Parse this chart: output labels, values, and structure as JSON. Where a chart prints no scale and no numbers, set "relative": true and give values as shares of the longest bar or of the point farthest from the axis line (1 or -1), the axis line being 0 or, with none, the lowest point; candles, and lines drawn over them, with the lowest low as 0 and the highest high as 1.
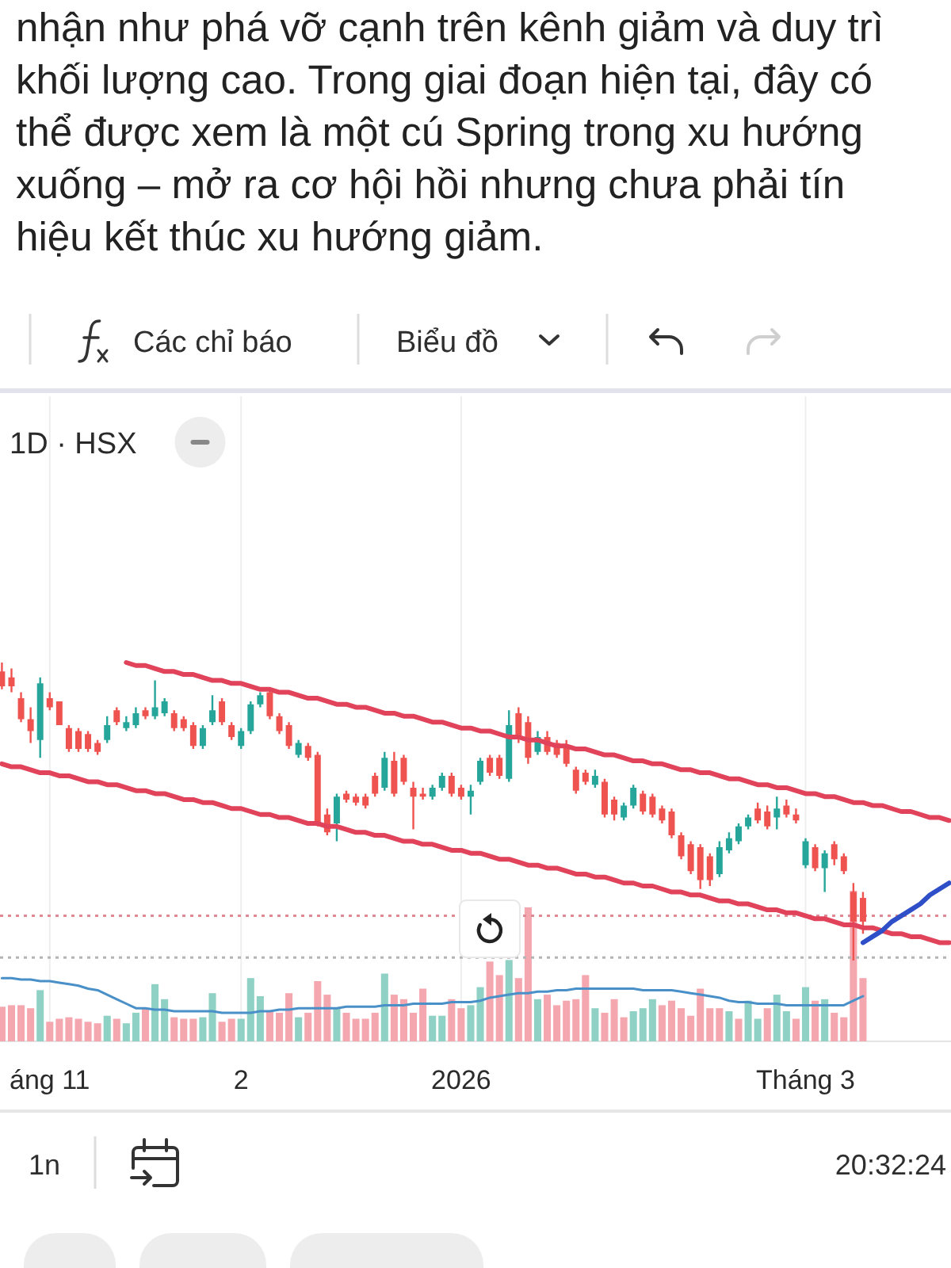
{
  "chart_data": [
    {
      "type": "candlestick",
      "title": "1D · HSX",
      "relative": true,
      "categories": [
        null,
        null,
        null,
        null,
        null,
        null,
        null,
        null,
        null,
        null,
        null,
        null,
        null,
        null,
        null,
        null,
        null,
        null,
        null,
        null,
        null,
        null,
        null,
        null,
        null,
        null,
        null,
        null,
        null,
        null,
        null,
        null,
        null,
        null,
        null,
        null,
        null,
        null,
        null,
        null,
        null,
        null,
        null,
        null,
        null,
        null,
        null,
        null,
        null,
        null,
        null,
        null,
        null,
        null,
        null,
        null,
        null,
        null,
        null,
        null,
        null,
        null,
        null,
        null,
        null,
        null,
        null,
        null,
        null,
        null,
        null,
        null,
        null,
        null,
        null,
        null,
        null,
        null,
        null,
        null,
        null,
        null,
        null,
        null,
        null,
        null,
        null,
        null,
        null,
        null,
        null,
        null,
        null,
        null,
        null,
        null,
        null,
        null,
        null,
        null
      ],
      "ohlc": [
        [
          0.97,
          1,
          0.91,
          0.92
        ],
        [
          0.95,
          0.98,
          0.9,
          0.92
        ],
        [
          0.88,
          0.9,
          0.8,
          0.81
        ],
        [
          0.81,
          0.85,
          0.73,
          0.77
        ],
        [
          0.74,
          0.95,
          0.68,
          0.93
        ],
        [
          0.88,
          0.9,
          0.84,
          0.85
        ],
        [
          0.87,
          0.87,
          0.79,
          0.79
        ],
        [
          0.78,
          0.79,
          0.7,
          0.71
        ],
        [
          0.77,
          0.78,
          0.7,
          0.71
        ],
        [
          0.76,
          0.77,
          0.7,
          0.71
        ],
        [
          0.73,
          0.74,
          0.69,
          0.7
        ],
        [
          0.74,
          0.82,
          0.73,
          0.79
        ],
        [
          0.84,
          0.85,
          0.79,
          0.8
        ],
        [
          0.78,
          0.82,
          0.77,
          0.8
        ],
        [
          0.79,
          0.85,
          0.78,
          0.83
        ],
        [
          0.84,
          0.85,
          0.81,
          0.82
        ],
        [
          0.82,
          0.94,
          0.81,
          0.85
        ],
        [
          0.83,
          0.88,
          0.82,
          0.87
        ],
        [
          0.83,
          0.84,
          0.77,
          0.78
        ],
        [
          0.81,
          0.82,
          0.77,
          0.78
        ],
        [
          0.79,
          0.8,
          0.71,
          0.72
        ],
        [
          0.72,
          0.79,
          0.71,
          0.78
        ],
        [
          0.8,
          0.89,
          0.79,
          0.84
        ],
        [
          0.87,
          0.88,
          0.79,
          0.8
        ],
        [
          0.79,
          0.8,
          0.74,
          0.75
        ],
        [
          0.72,
          0.78,
          0.71,
          0.77
        ],
        [
          0.77,
          0.87,
          0.76,
          0.86
        ],
        [
          0.86,
          0.9,
          0.85,
          0.89
        ],
        [
          0.9,
          0.91,
          0.81,
          0.82
        ],
        [
          0.82,
          0.83,
          0.76,
          0.77
        ],
        [
          0.79,
          0.8,
          0.71,
          0.72
        ],
        [
          0.69,
          0.74,
          0.68,
          0.73
        ],
        [
          0.72,
          0.73,
          0.67,
          0.68
        ],
        [
          0.69,
          0.7,
          0.45,
          0.46
        ],
        [
          0.49,
          0.51,
          0.42,
          0.43
        ],
        [
          0.46,
          0.56,
          0.4,
          0.55
        ],
        [
          0.56,
          0.57,
          0.53,
          0.54
        ],
        [
          0.55,
          0.56,
          0.52,
          0.53
        ],
        [
          0.55,
          0.56,
          0.51,
          0.52
        ],
        [
          0.62,
          0.63,
          0.55,
          0.56
        ],
        [
          0.58,
          0.7,
          0.57,
          0.68
        ],
        [
          0.67,
          0.7,
          0.55,
          0.56
        ],
        [
          0.68,
          0.69,
          0.59,
          0.6
        ],
        [
          0.58,
          0.6,
          0.44,
          0.55
        ],
        [
          0.56,
          0.58,
          0.54,
          0.55
        ],
        [
          0.55,
          0.59,
          0.54,
          0.58
        ],
        [
          0.58,
          0.63,
          0.57,
          0.62
        ],
        [
          0.62,
          0.63,
          0.55,
          0.56
        ],
        [
          0.58,
          0.59,
          0.54,
          0.55
        ],
        [
          0.55,
          0.59,
          0.49,
          0.57
        ],
        [
          0.6,
          0.68,
          0.59,
          0.67
        ],
        [
          0.68,
          0.69,
          0.62,
          0.63
        ],
        [
          0.68,
          0.69,
          0.61,
          0.62
        ],
        [
          0.61,
          0.84,
          0.6,
          0.79
        ],
        [
          0.83,
          0.85,
          0.73,
          0.75
        ],
        [
          0.8,
          0.82,
          0.66,
          0.68
        ],
        [
          0.7,
          0.77,
          0.69,
          0.75
        ],
        [
          0.75,
          0.77,
          0.69,
          0.7
        ],
        [
          0.73,
          0.74,
          0.68,
          0.69
        ],
        [
          0.72,
          0.74,
          0.65,
          0.66
        ],
        [
          0.64,
          0.65,
          0.56,
          0.57
        ],
        [
          0.63,
          0.64,
          0.59,
          0.6
        ],
        [
          0.59,
          0.64,
          0.58,
          0.62
        ],
        [
          0.6,
          0.61,
          0.48,
          0.49
        ],
        [
          0.54,
          0.55,
          0.47,
          0.49
        ],
        [
          0.48,
          0.53,
          0.47,
          0.52
        ],
        [
          0.52,
          0.59,
          0.51,
          0.58
        ],
        [
          0.56,
          0.57,
          0.49,
          0.5
        ],
        [
          0.55,
          0.56,
          0.48,
          0.49
        ],
        [
          0.51,
          0.52,
          0.46,
          0.47
        ],
        [
          0.5,
          0.51,
          0.41,
          0.42
        ],
        [
          0.42,
          0.43,
          0.34,
          0.35
        ],
        [
          0.39,
          0.4,
          0.29,
          0.3
        ],
        [
          0.38,
          0.39,
          0.24,
          0.27
        ],
        [
          0.35,
          0.36,
          0.25,
          0.27
        ],
        [
          0.29,
          0.4,
          0.28,
          0.38
        ],
        [
          0.37,
          0.43,
          0.36,
          0.41
        ],
        [
          0.4,
          0.46,
          0.39,
          0.45
        ],
        [
          0.45,
          0.49,
          0.44,
          0.48
        ],
        [
          0.51,
          0.53,
          0.46,
          0.47
        ],
        [
          0.5,
          0.52,
          0.44,
          0.45
        ],
        [
          0.48,
          0.55,
          0.44,
          0.51
        ],
        [
          0.52,
          0.54,
          0.48,
          0.49
        ],
        [
          0.49,
          0.51,
          0.46,
          0.47
        ],
        [
          0.32,
          0.41,
          0.31,
          0.4
        ],
        [
          0.38,
          0.39,
          0.3,
          0.31
        ],
        [
          0.31,
          0.37,
          0.23,
          0.36
        ],
        [
          0.39,
          0.4,
          0.32,
          0.34
        ],
        [
          0.35,
          0.36,
          0.29,
          0.3
        ],
        [
          0.23,
          0.26,
          0,
          0.13
        ],
        [
          0.21,
          0.23,
          0.09,
          0.13
        ],
        null,
        null,
        null,
        null,
        null,
        null,
        null,
        null,
        null
      ],
      "colors": [
        "#ef5350",
        "#ef5350",
        "#ef5350",
        "#ef5350",
        "#26a69a",
        "#ef5350",
        "#ef5350",
        "#ef5350",
        "#ef5350",
        "#ef5350",
        "#ef5350",
        "#26a69a",
        "#ef5350",
        "#26a69a",
        "#26a69a",
        "#ef5350",
        "#26a69a",
        "#26a69a",
        "#ef5350",
        "#ef5350",
        "#ef5350",
        "#26a69a",
        "#26a69a",
        "#ef5350",
        "#ef5350",
        "#26a69a",
        "#26a69a",
        "#26a69a",
        "#ef5350",
        "#ef5350",
        "#ef5350",
        "#26a69a",
        "#ef5350",
        "#ef5350",
        "#ef5350",
        "#26a69a",
        "#ef5350",
        "#ef5350",
        "#ef5350",
        "#ef5350",
        "#26a69a",
        "#ef5350",
        "#ef5350",
        "#ef5350",
        "#ef5350",
        "#26a69a",
        "#26a69a",
        "#ef5350",
        "#ef5350",
        "#26a69a",
        "#26a69a",
        "#ef5350",
        "#ef5350",
        "#26a69a",
        "#ef5350",
        "#ef5350",
        "#26a69a",
        "#ef5350",
        "#ef5350",
        "#ef5350",
        "#ef5350",
        "#ef5350",
        "#26a69a",
        "#ef5350",
        "#ef5350",
        "#26a69a",
        "#26a69a",
        "#ef5350",
        "#ef5350",
        "#ef5350",
        "#ef5350",
        "#ef5350",
        "#ef5350",
        "#ef5350",
        "#ef5350",
        "#26a69a",
        "#26a69a",
        "#26a69a",
        "#26a69a",
        "#ef5350",
        "#ef5350",
        "#26a69a",
        "#ef5350",
        "#ef5350",
        "#26a69a",
        "#ef5350",
        "#26a69a",
        "#ef5350",
        "#ef5350",
        "#ef5350",
        "#ef5350",
        null,
        null,
        null,
        null,
        null,
        null,
        null,
        null,
        null
      ],
      "series": [
        {
          "type": "line",
          "color": "#e0435a",
          "values": [
            null,
            null,
            null,
            null,
            null,
            null,
            null,
            null,
            null,
            null,
            null,
            null,
            null,
            1,
            0.99,
            0.99,
            0.98,
            0.97,
            0.97,
            0.96,
            0.96,
            0.95,
            0.94,
            0.94,
            0.93,
            0.93,
            0.92,
            0.91,
            0.91,
            0.9,
            0.9,
            0.89,
            0.88,
            0.88,
            0.87,
            0.86,
            0.86,
            0.85,
            0.85,
            0.84,
            0.83,
            0.83,
            0.82,
            0.82,
            0.81,
            0.8,
            0.8,
            0.79,
            0.78,
            0.78,
            0.77,
            0.77,
            0.76,
            0.75,
            0.75,
            0.74,
            0.74,
            0.73,
            0.72,
            0.72,
            0.71,
            0.71,
            0.7,
            0.69,
            0.69,
            0.68,
            0.67,
            0.67,
            0.66,
            0.66,
            0.65,
            0.64,
            0.64,
            0.63,
            0.63,
            0.62,
            0.61,
            0.61,
            0.6,
            0.59,
            0.59,
            0.58,
            0.58,
            0.57,
            0.56,
            0.56,
            0.55,
            0.55,
            0.54,
            0.53,
            0.53,
            0.52,
            0.52,
            0.51,
            0.5,
            0.5,
            0.49,
            0.48,
            0.48,
            0.47
          ]
        },
        {
          "type": "line",
          "color": "#e0435a",
          "values": [
            0.66,
            0.65,
            0.65,
            0.64,
            0.63,
            0.63,
            0.62,
            0.62,
            0.61,
            0.6,
            0.6,
            0.59,
            0.59,
            0.58,
            0.57,
            0.57,
            0.56,
            0.56,
            0.55,
            0.54,
            0.54,
            0.53,
            0.53,
            0.52,
            0.51,
            0.51,
            0.5,
            0.49,
            0.49,
            0.48,
            0.48,
            0.47,
            0.46,
            0.46,
            0.45,
            0.45,
            0.44,
            0.43,
            0.43,
            0.42,
            0.42,
            0.41,
            0.4,
            0.4,
            0.39,
            0.39,
            0.38,
            0.37,
            0.37,
            0.36,
            0.36,
            0.35,
            0.34,
            0.34,
            0.33,
            0.32,
            0.32,
            0.31,
            0.31,
            0.3,
            0.29,
            0.29,
            0.28,
            0.28,
            0.27,
            0.26,
            0.26,
            0.25,
            0.25,
            0.24,
            0.23,
            0.23,
            0.22,
            0.22,
            0.21,
            0.2,
            0.2,
            0.19,
            0.19,
            0.18,
            0.17,
            0.17,
            0.16,
            0.16,
            0.15,
            0.14,
            0.14,
            0.13,
            0.12,
            0.12,
            0.11,
            0.11,
            0.1,
            0.09,
            0.09,
            0.08,
            0.08,
            0.07,
            0.06,
            0.06
          ]
        },
        {
          "type": "line",
          "color": "#2e4fc7",
          "values": [
            null,
            null,
            null,
            null,
            null,
            null,
            null,
            null,
            null,
            null,
            null,
            null,
            null,
            null,
            null,
            null,
            null,
            null,
            null,
            null,
            null,
            null,
            null,
            null,
            null,
            null,
            null,
            null,
            null,
            null,
            null,
            null,
            null,
            null,
            null,
            null,
            null,
            null,
            null,
            null,
            null,
            null,
            null,
            null,
            null,
            null,
            null,
            null,
            null,
            null,
            null,
            null,
            null,
            null,
            null,
            null,
            null,
            null,
            null,
            null,
            null,
            null,
            null,
            null,
            null,
            null,
            null,
            null,
            null,
            null,
            null,
            null,
            null,
            null,
            null,
            null,
            null,
            null,
            null,
            null,
            null,
            null,
            null,
            null,
            null,
            null,
            null,
            null,
            null,
            null,
            0.06,
            0.08,
            0.1,
            0.13,
            0.15,
            0.17,
            0.19,
            0.22,
            0.24,
            0.26
          ]
        }
      ],
      "ref_lines": [
        {
          "axis": "y",
          "value": 0.15,
          "color": "#e08a96",
          "line_style": "dotted"
        },
        {
          "axis": "y",
          "value": 0.01,
          "color": "#b4b4b4",
          "line_style": "dotted"
        }
      ],
      "annotations": [
        "nhận như phá vỡ cạnh trên kênh giảm và duy trì khối lượng cao. Trong giai đoạn hiện tại, đây có thể được xem là một cú Spring trong xu hướng xuống – mở ra cơ hội hồi nhưng chưa phải tín hiệu kết thúc xu hướng giảm.",
        "Các chỉ báo",
        "Biểu đồ",
        "1n",
        "20:32:24"
      ]
    },
    {
      "type": "bar",
      "relative": true,
      "grid": "x",
      "categories": [
        null,
        null,
        null,
        null,
        null,
        "áng 11",
        null,
        null,
        null,
        null,
        null,
        null,
        null,
        null,
        null,
        null,
        null,
        null,
        null,
        null,
        null,
        null,
        null,
        null,
        null,
        "2",
        null,
        null,
        null,
        null,
        null,
        null,
        null,
        null,
        null,
        null,
        null,
        null,
        null,
        null,
        null,
        null,
        null,
        null,
        null,
        null,
        null,
        null,
        "2026",
        null,
        null,
        null,
        null,
        null,
        null,
        null,
        null,
        null,
        null,
        null,
        null,
        null,
        null,
        null,
        null,
        null,
        null,
        null,
        null,
        null,
        null,
        null,
        null,
        null,
        null,
        null,
        null,
        null,
        null,
        null,
        null,
        null,
        null,
        null,
        "Tháng 3",
        null,
        null,
        null,
        null,
        null,
        null,
        null,
        null,
        null,
        null,
        null,
        null,
        null,
        null,
        null
      ],
      "series": [
        {
          "type": "bar",
          "values": [
            0.23,
            0.24,
            0.24,
            0.22,
            0.34,
            0.13,
            0.15,
            0.16,
            0.15,
            0.13,
            0.12,
            0.17,
            0.15,
            0.12,
            0.19,
            0.22,
            0.38,
            0.28,
            0.16,
            0.15,
            0.15,
            0.16,
            0.32,
            0.13,
            0.15,
            0.15,
            0.42,
            0.3,
            0.2,
            0.19,
            0.32,
            0.16,
            0.19,
            0.4,
            0.31,
            0.22,
            0.19,
            0.15,
            0.15,
            0.19,
            0.45,
            0.31,
            0.28,
            0.19,
            0.35,
            0.17,
            0.17,
            0.28,
            0.22,
            0.24,
            0.36,
            0.53,
            0.44,
            0.54,
            0.42,
            0.89,
            0.28,
            0.31,
            0.24,
            0.27,
            0.28,
            0.44,
            0.22,
            0.19,
            0.28,
            0.16,
            0.2,
            0.22,
            0.28,
            0.24,
            0.27,
            0.22,
            0.17,
            0.35,
            0.22,
            0.22,
            0.2,
            0.15,
            0.27,
            0.15,
            0.22,
            0.31,
            0.2,
            0.15,
            0.36,
            0.27,
            0.28,
            0.19,
            0.16,
            1,
            0.42,
            null,
            null,
            null,
            null,
            null,
            null,
            null,
            null,
            null
          ],
          "colors": [
            "#f5a7b0",
            "#f5a7b0",
            "#f5a7b0",
            "#f5a7b0",
            "#8fd1c4",
            "#f5a7b0",
            "#f5a7b0",
            "#f5a7b0",
            "#f5a7b0",
            "#f5a7b0",
            "#f5a7b0",
            "#8fd1c4",
            "#f5a7b0",
            "#8fd1c4",
            "#8fd1c4",
            "#f5a7b0",
            "#8fd1c4",
            "#8fd1c4",
            "#f5a7b0",
            "#f5a7b0",
            "#f5a7b0",
            "#8fd1c4",
            "#8fd1c4",
            "#f5a7b0",
            "#f5a7b0",
            "#8fd1c4",
            "#8fd1c4",
            "#8fd1c4",
            "#f5a7b0",
            "#f5a7b0",
            "#f5a7b0",
            "#8fd1c4",
            "#f5a7b0",
            "#f5a7b0",
            "#f5a7b0",
            "#8fd1c4",
            "#f5a7b0",
            "#f5a7b0",
            "#f5a7b0",
            "#f5a7b0",
            "#8fd1c4",
            "#f5a7b0",
            "#f5a7b0",
            "#f5a7b0",
            "#f5a7b0",
            "#8fd1c4",
            "#8fd1c4",
            "#f5a7b0",
            "#f5a7b0",
            "#8fd1c4",
            "#8fd1c4",
            "#f5a7b0",
            "#f5a7b0",
            "#8fd1c4",
            "#f5a7b0",
            "#f5a7b0",
            "#8fd1c4",
            "#f5a7b0",
            "#f5a7b0",
            "#f5a7b0",
            "#f5a7b0",
            "#f5a7b0",
            "#8fd1c4",
            "#f5a7b0",
            "#f5a7b0",
            "#f5a7b0",
            "#8fd1c4",
            "#8fd1c4",
            "#8fd1c4",
            "#f5a7b0",
            "#f5a7b0",
            "#f5a7b0",
            "#f5a7b0",
            "#f5a7b0",
            "#f5a7b0",
            "#f5a7b0",
            "#8fd1c4",
            "#f5a7b0",
            "#8fd1c4",
            "#8fd1c4",
            "#f5a7b0",
            "#8fd1c4",
            "#8fd1c4",
            "#f5a7b0",
            "#8fd1c4",
            "#f5a7b0",
            "#8fd1c4",
            "#f5a7b0",
            "#f5a7b0",
            "#f5a7b0",
            "#f5a7b0",
            null,
            null,
            null,
            null,
            null,
            null,
            null,
            null,
            null
          ]
        },
        {
          "type": "line",
          "color": "#4a90c8",
          "values": [
            0.42,
            0.42,
            0.41,
            0.41,
            0.4,
            0.4,
            0.39,
            0.38,
            0.37,
            0.35,
            0.34,
            0.31,
            0.28,
            0.25,
            0.22,
            0.22,
            0.21,
            0.21,
            0.2,
            0.2,
            0.2,
            0.2,
            0.2,
            0.19,
            0.19,
            0.19,
            0.19,
            0.2,
            0.2,
            0.21,
            0.21,
            0.22,
            0.22,
            0.22,
            0.22,
            0.22,
            0.23,
            0.23,
            0.23,
            0.23,
            0.24,
            0.24,
            0.24,
            0.25,
            0.25,
            0.25,
            0.25,
            0.26,
            0.26,
            0.26,
            0.27,
            0.29,
            0.3,
            0.31,
            0.32,
            0.32,
            0.33,
            0.33,
            0.34,
            0.34,
            0.35,
            0.35,
            0.35,
            0.35,
            0.35,
            0.35,
            0.35,
            0.34,
            0.34,
            0.34,
            0.34,
            0.33,
            0.32,
            0.31,
            0.3,
            0.29,
            0.27,
            0.26,
            0.26,
            0.25,
            0.25,
            0.25,
            0.24,
            0.24,
            0.24,
            0.24,
            0.24,
            0.24,
            0.24,
            0.27,
            0.3,
            null,
            null,
            null,
            null,
            null,
            null,
            null,
            null,
            null
          ]
        }
      ]
    }
  ]
}
